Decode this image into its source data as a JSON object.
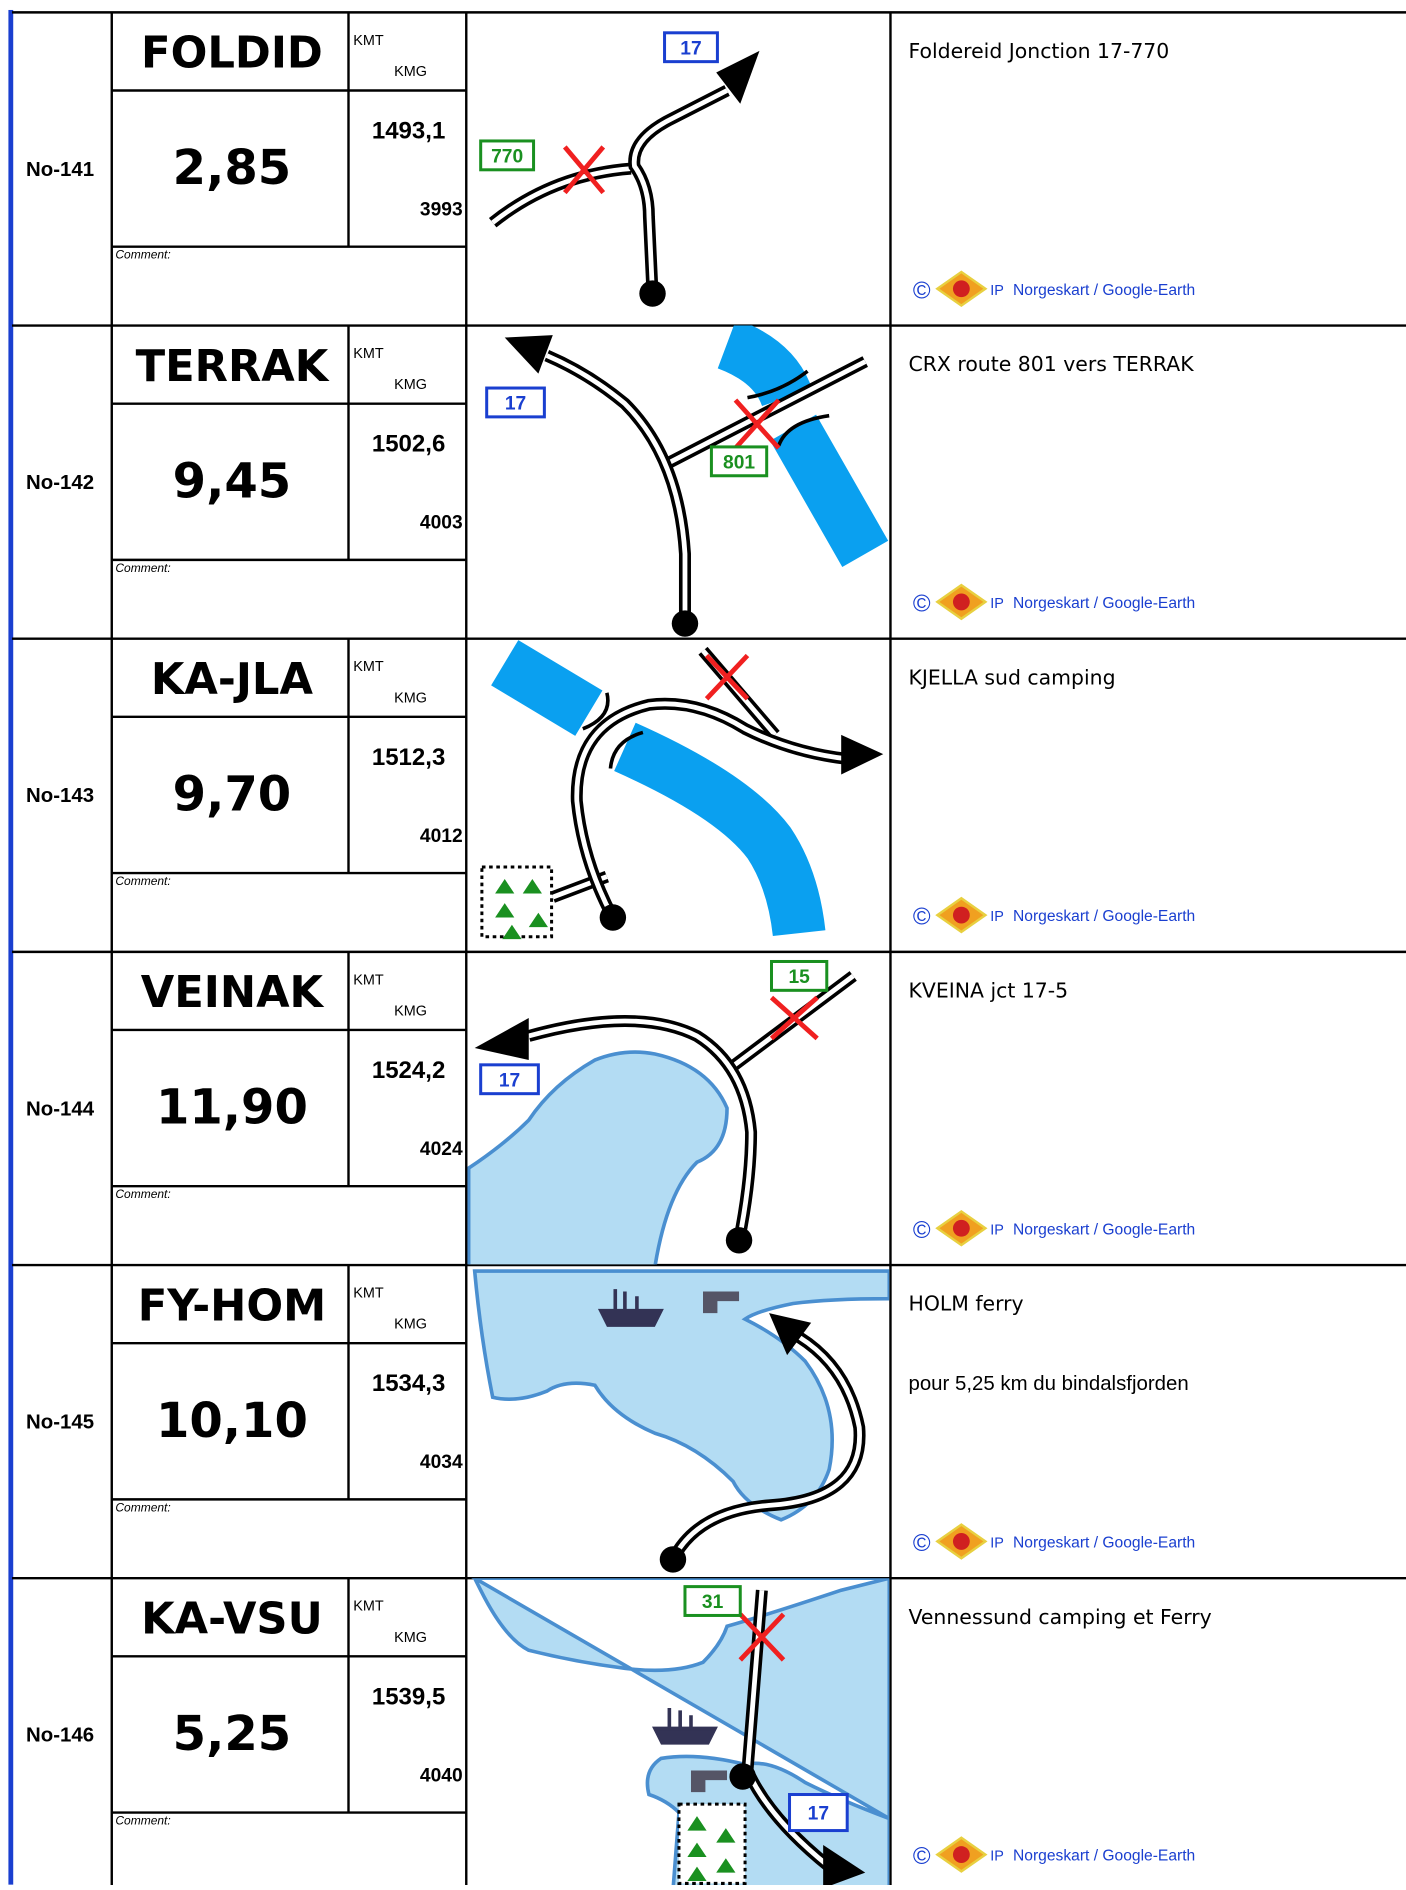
{
  "rows": [
    {
      "id": "No-141",
      "name": "FOLDID",
      "kmt_label": "KMT",
      "kmg_label": "KMG",
      "distance": "2,85",
      "kmt": "1493,1",
      "kmg": "3993",
      "comment_label": "Comment:",
      "description": [
        "Foldereid Jonction 17-770"
      ],
      "credit": {
        "symbol": "©",
        "ip": "IP",
        "source": "Norgeskart / Google-Earth"
      },
      "routes": [
        "17",
        "770"
      ]
    },
    {
      "id": "No-142",
      "name": "TERRAK",
      "kmt_label": "KMT",
      "kmg_label": "KMG",
      "distance": "9,45",
      "kmt": "1502,6",
      "kmg": "4003",
      "comment_label": "Comment:",
      "description": [
        "CRX route 801 vers TERRAK"
      ],
      "credit": {
        "symbol": "©",
        "ip": "IP",
        "source": "Norgeskart / Google-Earth"
      },
      "routes": [
        "17",
        "801"
      ]
    },
    {
      "id": "No-143",
      "name": "KA-JLA",
      "kmt_label": "KMT",
      "kmg_label": "KMG",
      "distance": "9,70",
      "kmt": "1512,3",
      "kmg": "4012",
      "comment_label": "Comment:",
      "description": [
        "KJELLA sud camping"
      ],
      "credit": {
        "symbol": "©",
        "ip": "IP",
        "source": "Norgeskart / Google-Earth"
      },
      "routes": []
    },
    {
      "id": "No-144",
      "name": "VEINAK",
      "kmt_label": "KMT",
      "kmg_label": "KMG",
      "distance": "11,90",
      "kmt": "1524,2",
      "kmg": "4024",
      "comment_label": "Comment:",
      "description": [
        "KVEINA jct 17-5"
      ],
      "credit": {
        "symbol": "©",
        "ip": "IP",
        "source": "Norgeskart / Google-Earth"
      },
      "routes": [
        "15",
        "17"
      ]
    },
    {
      "id": "No-145",
      "name": "FY-HOM",
      "kmt_label": "KMT",
      "kmg_label": "KMG",
      "distance": "10,10",
      "kmt": "1534,3",
      "kmg": "4034",
      "comment_label": "Comment:",
      "description": [
        "HOLM ferry",
        "pour 5,25 km du bindalsfjorden"
      ],
      "credit": {
        "symbol": "©",
        "ip": "IP",
        "source": "Norgeskart / Google-Earth"
      },
      "routes": []
    },
    {
      "id": "No-146",
      "name": "KA-VSU",
      "kmt_label": "KMT",
      "kmg_label": "KMG",
      "distance": "5,25",
      "kmt": "1539,5",
      "kmg": "4040",
      "comment_label": "Comment:",
      "description": [
        "Vennessund camping et Ferry"
      ],
      "credit": {
        "symbol": "©",
        "ip": "IP",
        "source": "Norgeskart / Google-Earth"
      },
      "routes": [
        "31",
        "17"
      ]
    }
  ]
}
